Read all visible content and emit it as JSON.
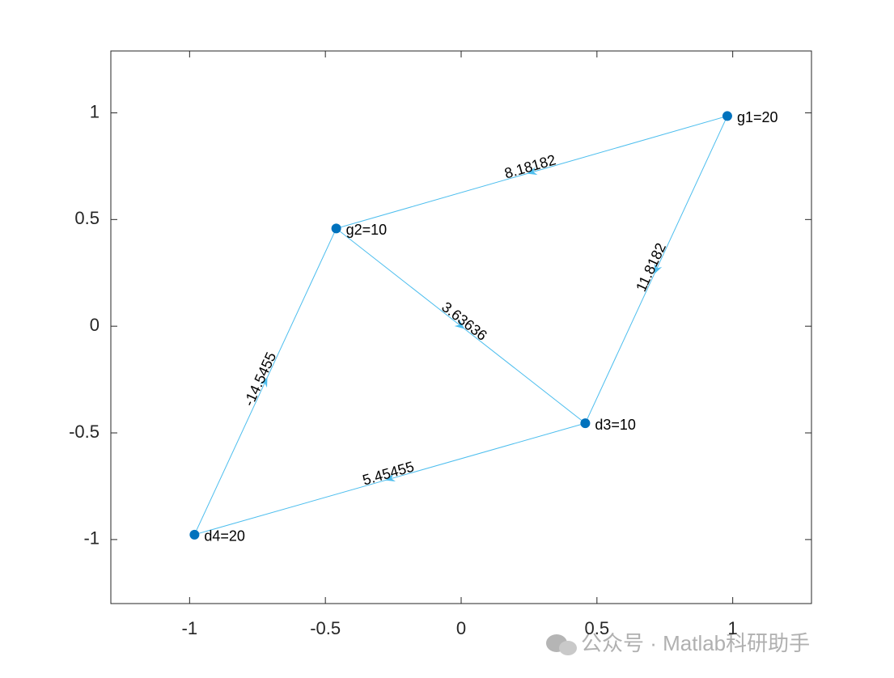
{
  "chart_data": {
    "type": "network",
    "xlim": [
      -1.29,
      1.29
    ],
    "ylim": [
      -1.3,
      1.29
    ],
    "xticks": [
      -1,
      -0.5,
      0,
      0.5,
      1
    ],
    "yticks": [
      -1,
      -0.5,
      0,
      0.5,
      1
    ],
    "color": "#0072bd",
    "edge_color": "#4dbeee",
    "nodes": [
      {
        "label": "g1=20",
        "x": 0.98,
        "y": 0.985
      },
      {
        "label": "g2=10",
        "x": -0.46,
        "y": 0.458
      },
      {
        "label": "d3=10",
        "x": 0.457,
        "y": -0.455
      },
      {
        "label": "d4=20",
        "x": -0.982,
        "y": -0.977
      }
    ],
    "edges": [
      {
        "source": 0,
        "target": 1,
        "value": 8.18182
      },
      {
        "source": 0,
        "target": 2,
        "value": 11.8182
      },
      {
        "source": 1,
        "target": 2,
        "value": 3.63636
      },
      {
        "source": 3,
        "target": 1,
        "value": -14.5455
      },
      {
        "source": 2,
        "target": 3,
        "value": 5.45455
      }
    ]
  },
  "watermark": "公众号 · Matlab科研助手"
}
